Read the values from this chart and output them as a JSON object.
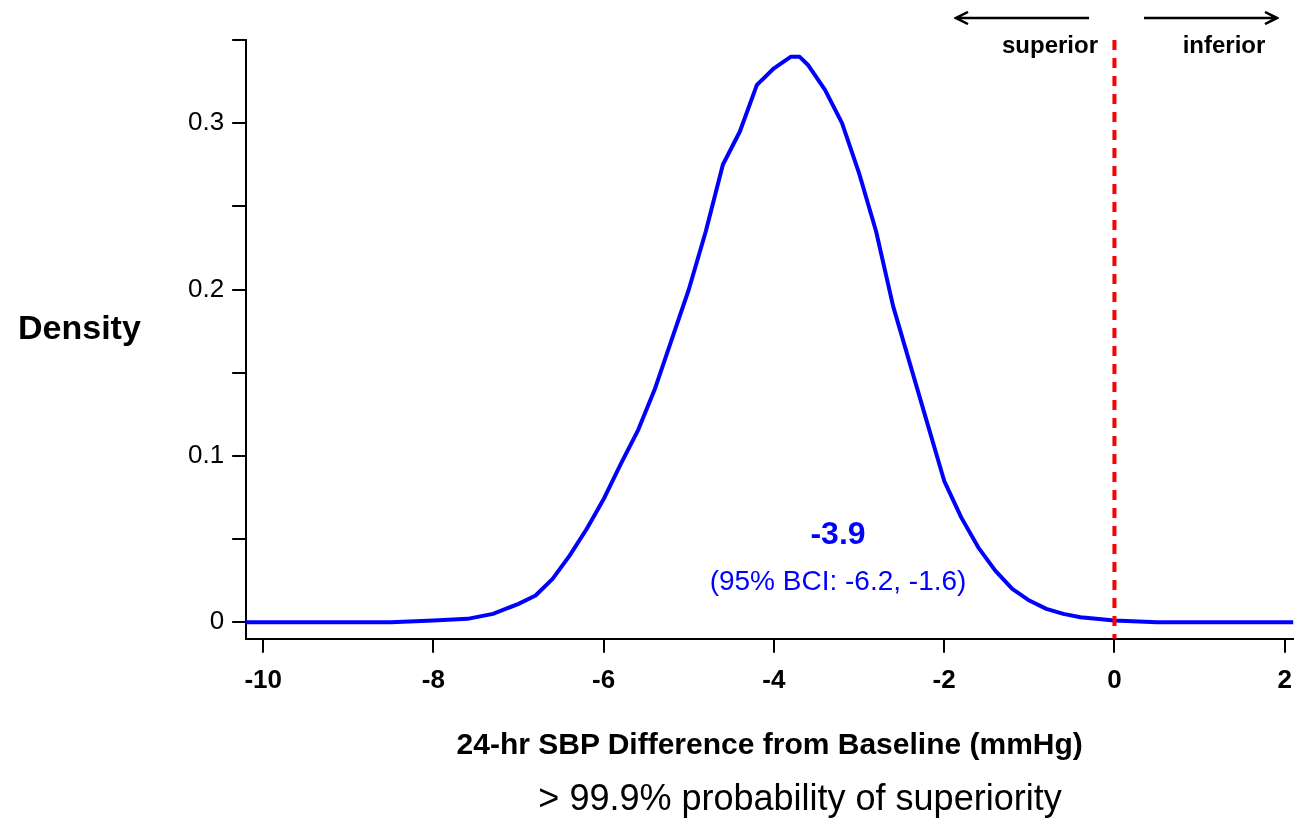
{
  "chart_data": {
    "type": "line",
    "xlabel": "24-hr SBP Difference from Baseline (mmHg)",
    "ylabel": "Density",
    "xlim": [
      -10.2,
      2.1
    ],
    "xticks": [
      -10,
      -8,
      -6,
      -4,
      -2,
      0,
      2
    ],
    "ylim": [
      -0.01,
      0.35
    ],
    "yticks": [
      0,
      {
        "value": 0.05,
        "label": null
      },
      0.1,
      {
        "value": 0.15,
        "label": null
      },
      0.2,
      {
        "value": 0.25,
        "label": null
      },
      0.3,
      {
        "value": 0.35,
        "label": null
      }
    ],
    "grid": false,
    "legend": false,
    "marker": "none",
    "line_style": "solid",
    "series": [
      {
        "color": "#0000ff",
        "x": [
          -10.2,
          -8.5,
          -8,
          -7.6,
          -7.3,
          -7,
          -6.8,
          -6.6,
          -6.4,
          -6.2,
          -6,
          -5.8,
          -5.6,
          -5.4,
          -5.2,
          -5,
          -4.8,
          -4.6,
          -4.4,
          -4.2,
          -4,
          -3.8,
          -3.7,
          -3.6,
          -3.4,
          -3.2,
          -3,
          -2.8,
          -2.6,
          -2.4,
          -2.2,
          -2,
          -1.8,
          -1.6,
          -1.4,
          -1.2,
          -1,
          -0.8,
          -0.6,
          -0.4,
          0,
          0.5,
          2.1
        ],
        "values": [
          0,
          0,
          0.001,
          0.002,
          0.005,
          0.011,
          0.016,
          0.026,
          0.04,
          0.056,
          0.074,
          0.095,
          0.115,
          0.14,
          0.17,
          0.2,
          0.235,
          0.275,
          0.295,
          0.323,
          0.333,
          0.34,
          0.34,
          0.335,
          0.32,
          0.3,
          0.27,
          0.235,
          0.19,
          0.155,
          0.12,
          0.085,
          0.063,
          0.045,
          0.031,
          0.02,
          0.013,
          0.008,
          0.005,
          0.003,
          0.001,
          0,
          0
        ]
      }
    ],
    "ref_lines": [
      {
        "axis": "x",
        "value": 0,
        "color": "#ff0000",
        "line_style": "dashed"
      }
    ],
    "annotations": [
      "-3.9",
      "(95% BCI: -6.2, -1.6)",
      "superior",
      "inferior",
      "> 99.9% probability of superiority"
    ]
  }
}
